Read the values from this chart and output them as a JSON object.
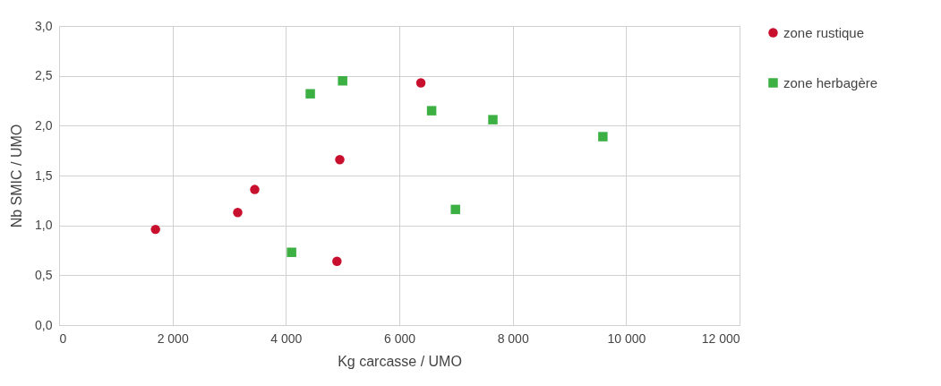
{
  "chart_data": {
    "type": "scatter",
    "xlabel": "Kg carcasse / UMO",
    "ylabel": "Nb SMIC / UMO",
    "series": [
      {
        "name": "zone rustique",
        "color": "#c8102e",
        "marker": "circle",
        "x": [
          1700,
          3150,
          3450,
          4950,
          4900,
          6380
        ],
        "values": [
          0.96,
          1.13,
          1.36,
          1.66,
          0.64,
          2.43
        ]
      },
      {
        "name": "zone herbagère",
        "color": "#3cb043",
        "marker": "square",
        "x": [
          4430,
          5000,
          4100,
          6570,
          7650,
          9590,
          6990
        ],
        "values": [
          2.32,
          2.45,
          0.73,
          2.15,
          2.06,
          1.89,
          1.16
        ]
      }
    ],
    "xlim": [
      0,
      12000
    ],
    "xticks": [
      0,
      {
        "value": 2000,
        "label": "2 000"
      },
      {
        "value": 4000,
        "label": "4 000"
      },
      {
        "value": 6000,
        "label": "6 000"
      },
      {
        "value": 8000,
        "label": "8 000"
      },
      {
        "value": 10000,
        "label": "10 000"
      },
      {
        "value": 12000,
        "label": "12 000"
      }
    ],
    "ylim": [
      0,
      3
    ],
    "yticks": [
      {
        "value": 0,
        "label": "0,0"
      },
      {
        "value": 0.5,
        "label": "0,5"
      },
      {
        "value": 1,
        "label": "1,0"
      },
      {
        "value": 1.5,
        "label": "1,5"
      },
      {
        "value": 2,
        "label": "2,0"
      },
      {
        "value": 2.5,
        "label": "2,5"
      },
      {
        "value": 3,
        "label": "3,0"
      }
    ],
    "grid": true,
    "legend": "right"
  }
}
